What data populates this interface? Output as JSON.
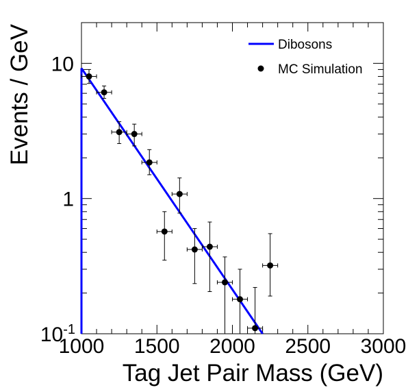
{
  "chart_data": {
    "type": "scatter",
    "title": "",
    "xlabel": "Tag Jet Pair Mass (GeV)",
    "ylabel": "Events / GeV",
    "xlim": [
      1000,
      3000
    ],
    "ylim": [
      0.1,
      20
    ],
    "yscale": "log",
    "grid": false,
    "legend_position": "top-right",
    "x_ticks": [
      "1000",
      "1500",
      "2000",
      "2500",
      "3000"
    ],
    "y_ticks": [
      {
        "value": 0.1,
        "base": "10",
        "exponent": "-1"
      },
      {
        "value": 1,
        "label": "1"
      },
      {
        "value": 10,
        "label": "10"
      }
    ],
    "series": [
      {
        "name": "Dibosons",
        "kind": "line",
        "color": "#0000ff",
        "x": [
          1000,
          2200
        ],
        "y": [
          9.2,
          0.1
        ]
      },
      {
        "name": "MC Simulation",
        "kind": "points",
        "color": "#000000",
        "x": [
          1050,
          1150,
          1250,
          1350,
          1450,
          1550,
          1650,
          1750,
          1850,
          1950,
          2050,
          2150,
          2250
        ],
        "y": [
          8.0,
          6.1,
          3.1,
          3.0,
          1.85,
          0.57,
          1.08,
          0.42,
          0.44,
          0.24,
          0.18,
          0.11,
          0.32
        ],
        "y_low": [
          7.1,
          5.5,
          2.55,
          2.45,
          1.5,
          0.35,
          0.78,
          0.235,
          0.205,
          0.1,
          0.1,
          0.1,
          0.19
        ],
        "y_high": [
          9.0,
          6.8,
          3.7,
          3.55,
          2.3,
          0.8,
          1.42,
          0.6,
          0.67,
          0.37,
          0.3,
          0.22,
          0.55
        ],
        "x_err": 50
      }
    ]
  }
}
